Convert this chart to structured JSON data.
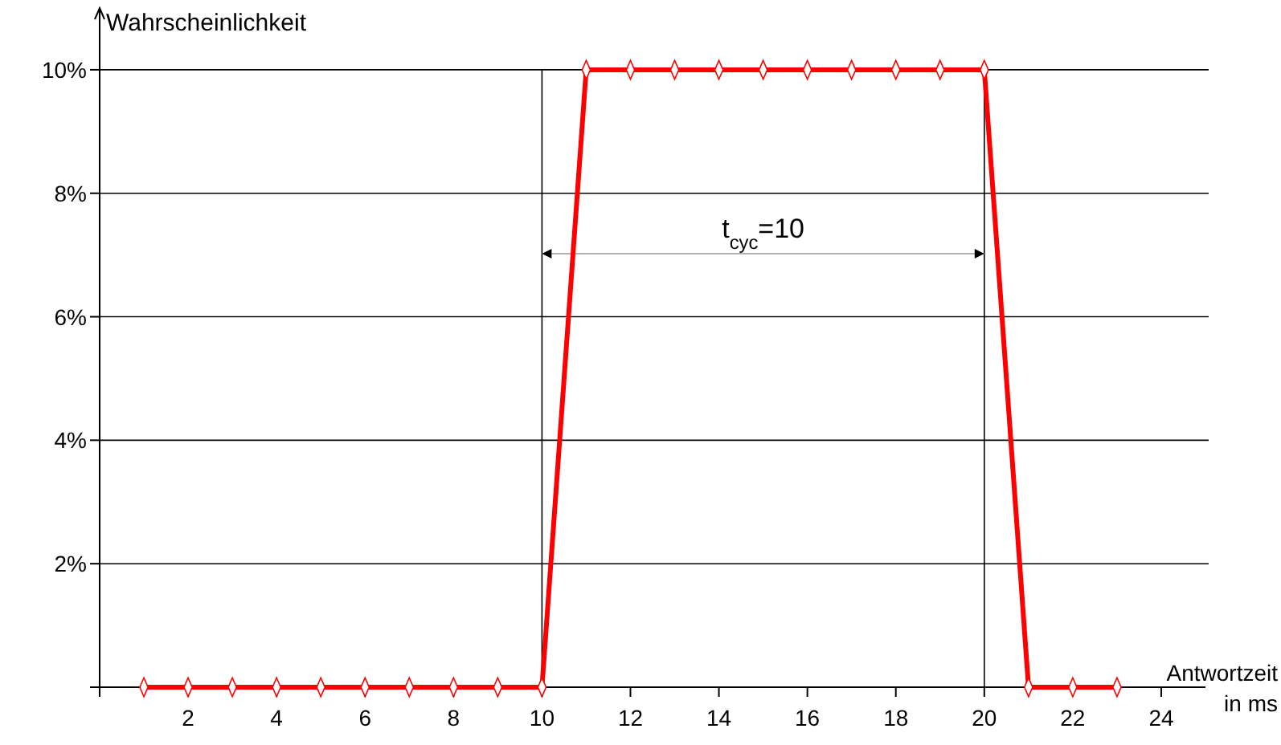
{
  "chart_data": {
    "type": "line",
    "xlabel": "Antwortzeit\nin ms",
    "ylabel": "Wahrscheinlichkeit",
    "x": [
      1,
      2,
      3,
      4,
      5,
      6,
      7,
      8,
      9,
      10,
      11,
      12,
      13,
      14,
      15,
      16,
      17,
      18,
      19,
      20,
      21,
      22,
      23
    ],
    "series": [
      {
        "color": "#ff0000",
        "values": [
          0,
          0,
          0,
          0,
          0,
          0,
          0,
          0,
          0,
          0,
          10,
          10,
          10,
          10,
          10,
          10,
          10,
          10,
          10,
          10,
          0,
          0,
          0
        ]
      }
    ],
    "xlim": [
      0,
      25
    ],
    "ylim": [
      0,
      11
    ],
    "xticks": [
      {
        "value": 0,
        "label": null
      },
      2,
      4,
      6,
      8,
      10,
      12,
      14,
      16,
      18,
      20,
      22,
      24
    ],
    "yticks": [
      {
        "value": 0,
        "label": null
      },
      {
        "value": 2,
        "label": "2%"
      },
      {
        "value": 4,
        "label": "4%"
      },
      {
        "value": 6,
        "label": "6%"
      },
      {
        "value": 8,
        "label": "8%"
      },
      {
        "value": 10,
        "label": "10%"
      }
    ],
    "grid": "y",
    "marker": "diamond",
    "line_style": "solid",
    "ref_lines": [
      {
        "axis": "x",
        "value": 10,
        "color": "#000000"
      },
      {
        "axis": "x",
        "value": 20,
        "color": "#000000"
      }
    ],
    "annotations": [
      "t$_{cyc}$=10"
    ]
  }
}
